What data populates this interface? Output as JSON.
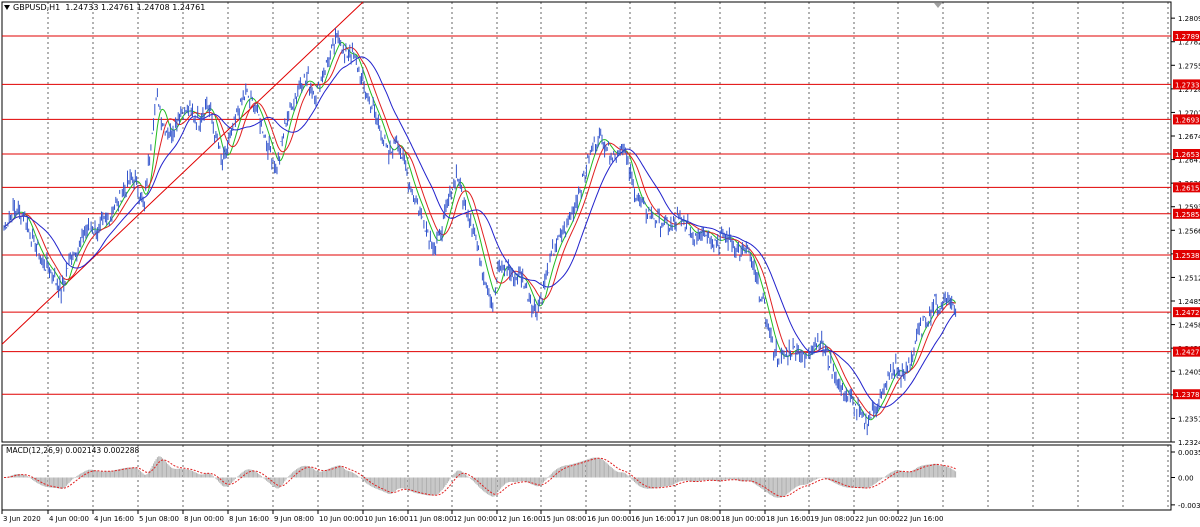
{
  "header": {
    "symbol_tf": "GBPUSD,H1",
    "ohlc": "1.24733 1.24761 1.24708 1.24761"
  },
  "macd": {
    "label": "MACD(12,26,9) 0.002143 0.002288"
  },
  "chart_data": [
    {
      "type": "candlestick",
      "symbol": "GBPUSD",
      "timeframe": "H1",
      "ylim": [
        1.2324,
        1.2828
      ],
      "y_ticks": [
        "1.28095",
        "1.27825",
        "1.27555",
        "1.27285",
        "1.27015",
        "1.26745",
        "1.26475",
        "1.26205",
        "1.25935",
        "1.25665",
        "1.25395",
        "1.25125",
        "1.24855",
        "1.24585",
        "1.24315",
        "1.24050",
        "1.23780",
        "1.23510",
        "1.23240"
      ],
      "x_tick_labels": [
        "3 Jun 2020",
        "4 Jun 00:00",
        "4 Jun 16:00",
        "5 Jun 08:00",
        "8 Jun 00:00",
        "8 Jun 16:00",
        "9 Jun 08:00",
        "10 Jun 00:00",
        "10 Jun 16:00",
        "11 Jun 08:00",
        "12 Jun 00:00",
        "12 Jun 16:00",
        "15 Jun 08:00",
        "16 Jun 00:00",
        "16 Jun 16:00",
        "17 Jun 08:00",
        "18 Jun 00:00",
        "18 Jun 16:00",
        "19 Jun 08:00",
        "22 Jun 00:00",
        "22 Jun 16:00"
      ],
      "price_levels": [
        "1.27891",
        "1.27336",
        "1.26935",
        "1.26539",
        "1.26157",
        "1.25854",
        "1.25382",
        "1.24727",
        "1.24275",
        "1.23787"
      ],
      "price_level_color": "#e00000",
      "trendline": {
        "from": [
          "3 Jun 2020",
          1.2436
        ],
        "to": [
          "10 Jun 16:00",
          1.2828
        ],
        "color": "#e00000"
      },
      "price_waypoints": [
        [
          0,
          1.257
        ],
        [
          8,
          1.259
        ],
        [
          16,
          1.2582
        ],
        [
          22,
          1.2555
        ],
        [
          30,
          1.253
        ],
        [
          38,
          1.2515
        ],
        [
          44,
          1.2495
        ],
        [
          50,
          1.253
        ],
        [
          56,
          1.2545
        ],
        [
          64,
          1.257
        ],
        [
          72,
          1.2565
        ],
        [
          82,
          1.2585
        ],
        [
          92,
          1.2612
        ],
        [
          100,
          1.2628
        ],
        [
          108,
          1.2595
        ],
        [
          114,
          1.2685
        ],
        [
          118,
          1.2722
        ],
        [
          122,
          1.269
        ],
        [
          128,
          1.2675
        ],
        [
          134,
          1.27
        ],
        [
          142,
          1.2705
        ],
        [
          150,
          1.2692
        ],
        [
          156,
          1.2715
        ],
        [
          162,
          1.268
        ],
        [
          168,
          1.2642
        ],
        [
          174,
          1.267
        ],
        [
          180,
          1.2702
        ],
        [
          186,
          1.2722
        ],
        [
          192,
          1.2712
        ],
        [
          198,
          1.2688
        ],
        [
          204,
          1.266
        ],
        [
          210,
          1.2635
        ],
        [
          216,
          1.2688
        ],
        [
          222,
          1.2712
        ],
        [
          228,
          1.2735
        ],
        [
          234,
          1.274
        ],
        [
          240,
          1.2722
        ],
        [
          246,
          1.2748
        ],
        [
          252,
          1.2772
        ],
        [
          258,
          1.279
        ],
        [
          262,
          1.2762
        ],
        [
          266,
          1.2775
        ],
        [
          272,
          1.2755
        ],
        [
          278,
          1.2725
        ],
        [
          284,
          1.2705
        ],
        [
          290,
          1.2682
        ],
        [
          296,
          1.265
        ],
        [
          302,
          1.2672
        ],
        [
          308,
          1.2642
        ],
        [
          314,
          1.2612
        ],
        [
          320,
          1.259
        ],
        [
          326,
          1.2565
        ],
        [
          332,
          1.2548
        ],
        [
          338,
          1.2575
        ],
        [
          344,
          1.2612
        ],
        [
          348,
          1.2632
        ],
        [
          354,
          1.2598
        ],
        [
          360,
          1.2575
        ],
        [
          366,
          1.2535
        ],
        [
          372,
          1.2502
        ],
        [
          376,
          1.2482
        ],
        [
          380,
          1.252
        ],
        [
          386,
          1.2528
        ],
        [
          392,
          1.251
        ],
        [
          398,
          1.2515
        ],
        [
          404,
          1.249
        ],
        [
          410,
          1.2472
        ],
        [
          416,
          1.2508
        ],
        [
          422,
          1.254
        ],
        [
          428,
          1.256
        ],
        [
          434,
          1.2575
        ],
        [
          440,
          1.26
        ],
        [
          446,
          1.2628
        ],
        [
          452,
          1.266
        ],
        [
          458,
          1.2675
        ],
        [
          464,
          1.2662
        ],
        [
          470,
          1.265
        ],
        [
          476,
          1.2665
        ],
        [
          482,
          1.2628
        ],
        [
          488,
          1.26
        ],
        [
          494,
          1.2588
        ],
        [
          500,
          1.2582
        ],
        [
          506,
          1.2575
        ],
        [
          512,
          1.2568
        ],
        [
          518,
          1.258
        ],
        [
          524,
          1.2574
        ],
        [
          530,
          1.256
        ],
        [
          536,
          1.2568
        ],
        [
          542,
          1.2562
        ],
        [
          548,
          1.2552
        ],
        [
          554,
          1.256
        ],
        [
          560,
          1.2555
        ],
        [
          566,
          1.254
        ],
        [
          572,
          1.2545
        ],
        [
          578,
          1.2512
        ],
        [
          584,
          1.2482
        ],
        [
          588,
          1.2455
        ],
        [
          592,
          1.2432
        ],
        [
          598,
          1.2418
        ],
        [
          604,
          1.2428
        ],
        [
          610,
          1.2432
        ],
        [
          616,
          1.2418
        ],
        [
          622,
          1.2435
        ],
        [
          628,
          1.244
        ],
        [
          634,
          1.2418
        ],
        [
          640,
          1.2398
        ],
        [
          646,
          1.238
        ],
        [
          652,
          1.237
        ],
        [
          658,
          1.2358
        ],
        [
          662,
          1.2345
        ],
        [
          666,
          1.2352
        ],
        [
          670,
          1.2362
        ],
        [
          676,
          1.2378
        ],
        [
          680,
          1.2395
        ],
        [
          686,
          1.241
        ],
        [
          692,
          1.2398
        ],
        [
          698,
          1.242
        ],
        [
          702,
          1.2445
        ],
        [
          706,
          1.2455
        ],
        [
          712,
          1.247
        ],
        [
          716,
          1.2485
        ],
        [
          720,
          1.2475
        ],
        [
          724,
          1.2492
        ],
        [
          728,
          1.2485
        ],
        [
          732,
          1.2476
        ]
      ],
      "series": [
        {
          "name": "",
          "kind": "close",
          "color": "#3355cc"
        },
        {
          "name": "",
          "kind": "ma",
          "period": 8,
          "color": "#22bb22"
        },
        {
          "name": "",
          "kind": "ma",
          "period": 15,
          "color": "#e02020"
        },
        {
          "name": "",
          "kind": "ma",
          "period": 32,
          "color": "#2222cc"
        }
      ]
    },
    {
      "type": "bar",
      "indicator": "MACD(12,26,9)",
      "ylim": [
        -0.0045,
        0.0045
      ],
      "y_ticks": [
        "0.00353",
        "0.00",
        "-0.00379"
      ],
      "signal_color": "#e02020",
      "histogram_color": "#b0b0b0"
    }
  ]
}
